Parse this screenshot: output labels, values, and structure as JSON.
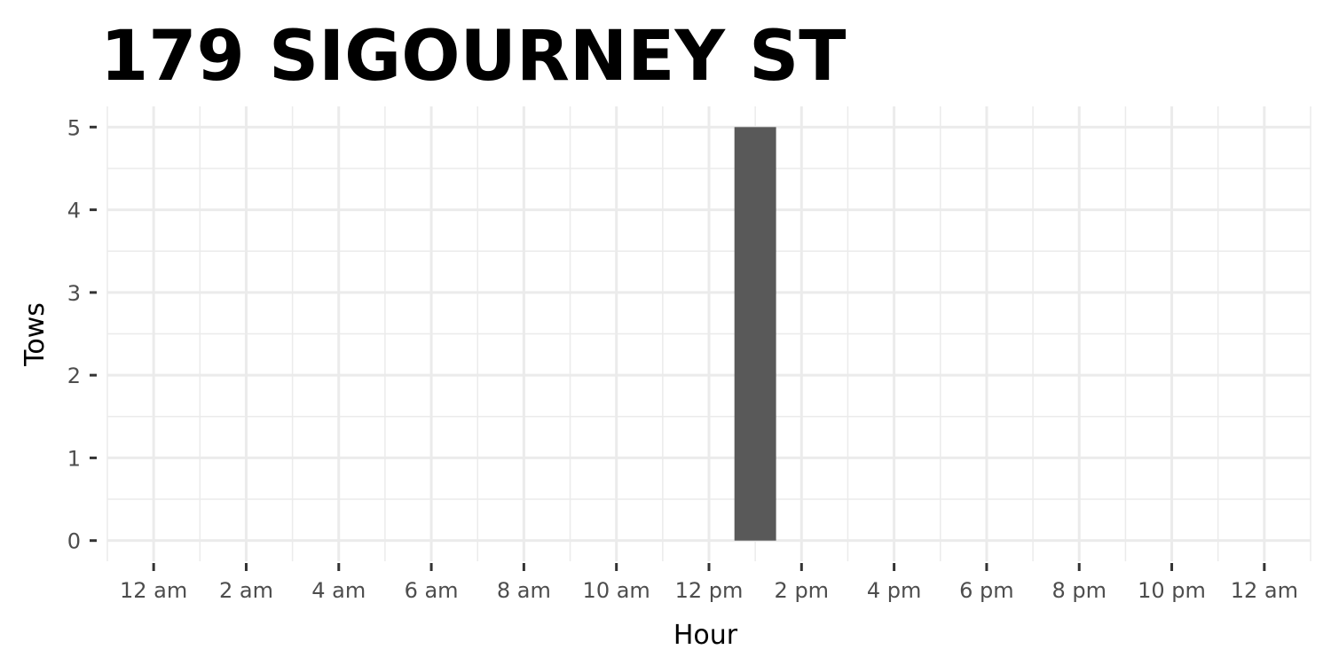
{
  "chart_data": {
    "type": "bar",
    "title": "179 SIGOURNEY ST",
    "xlabel": "Hour",
    "ylabel": "Tows",
    "x_unit": "hour of day",
    "xlim": [
      -1,
      25
    ],
    "ylim": [
      -0.25,
      5.25
    ],
    "x_ticks": [
      {
        "value": 0,
        "label": "12 am"
      },
      {
        "value": 2,
        "label": "2 am"
      },
      {
        "value": 4,
        "label": "4 am"
      },
      {
        "value": 6,
        "label": "6 am"
      },
      {
        "value": 8,
        "label": "8 am"
      },
      {
        "value": 10,
        "label": "10 am"
      },
      {
        "value": 12,
        "label": "12 pm"
      },
      {
        "value": 14,
        "label": "2 pm"
      },
      {
        "value": 16,
        "label": "4 pm"
      },
      {
        "value": 18,
        "label": "6 pm"
      },
      {
        "value": 20,
        "label": "8 pm"
      },
      {
        "value": 22,
        "label": "10 pm"
      },
      {
        "value": 24,
        "label": "12 am"
      }
    ],
    "y_ticks": [
      0,
      1,
      2,
      3,
      4,
      5
    ],
    "bars": [
      {
        "hour": 13,
        "value": 5
      }
    ],
    "bar_width_hours": 0.9,
    "grid": true,
    "colors": {
      "bar": "#595959",
      "grid": "#ebebeb",
      "tick_mark": "#333333",
      "tick_text": "#4d4d4d"
    }
  }
}
